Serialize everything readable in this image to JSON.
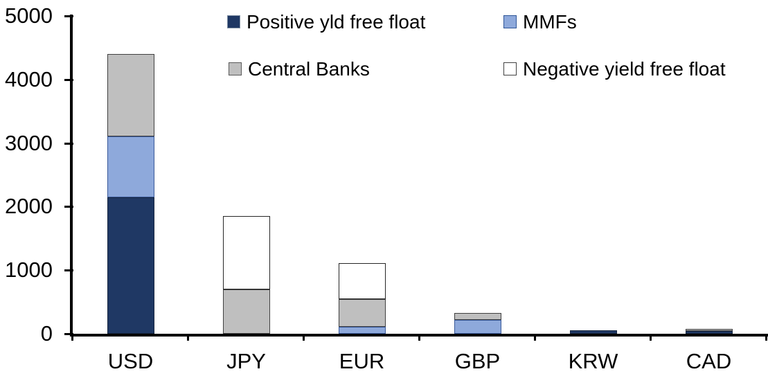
{
  "chart_data": {
    "type": "bar",
    "stacked": true,
    "title": "",
    "xlabel": "",
    "ylabel": "",
    "categories": [
      "USD",
      "JPY",
      "EUR",
      "GBP",
      "KRW",
      "CAD"
    ],
    "series": [
      {
        "name": "Positive yld free float",
        "color": "#1F3864",
        "border": "#17263F",
        "legend_border": "#8090A4",
        "values": [
          2150,
          0,
          0,
          0,
          50,
          40
        ]
      },
      {
        "name": "MMFs",
        "color": "#8EA9DB",
        "border": "#3A5A9A",
        "legend_border": "#2E5597",
        "values": [
          950,
          0,
          110,
          220,
          0,
          0
        ]
      },
      {
        "name": "Central Banks",
        "color": "#BFBFBF",
        "border": "#404040",
        "legend_border": "#595959",
        "values": [
          1300,
          700,
          440,
          110,
          0,
          35
        ]
      },
      {
        "name": "Negative yield free float",
        "color": "#FFFFFF",
        "border": "#262626",
        "legend_border": "#404040",
        "values": [
          0,
          1150,
          560,
          0,
          0,
          0
        ]
      }
    ],
    "ylim": [
      0,
      5000
    ],
    "yticks": [
      0,
      1000,
      2000,
      3000,
      4000,
      5000
    ],
    "grid": false,
    "legend_position": "top",
    "legend_rows": [
      [
        "Positive yld free float",
        "MMFs"
      ],
      [
        "Central Banks",
        "Negative yield free float"
      ]
    ],
    "axis_color": "#000000",
    "text_color": "#000000",
    "background": "#FFFFFF"
  }
}
